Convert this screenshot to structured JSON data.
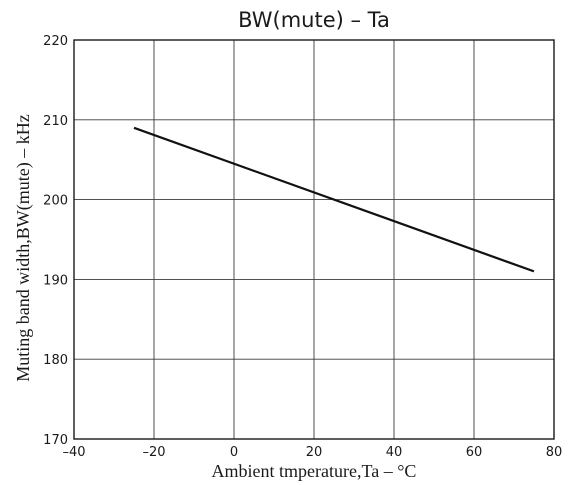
{
  "chart_data": {
    "type": "line",
    "title": "BW(mute)  –  Ta",
    "xlabel": "Ambient tmperature,Ta  –  °C",
    "ylabel": "Muting band width,BW(mute)  –  kHz",
    "xlim": [
      -40,
      80
    ],
    "ylim": [
      170,
      220
    ],
    "xticks": [
      -40,
      -20,
      0,
      20,
      40,
      60,
      80
    ],
    "yticks": [
      170,
      180,
      190,
      200,
      210,
      220
    ],
    "xtick_labels": [
      "–40",
      "–20",
      "0",
      "20",
      "40",
      "60",
      "80"
    ],
    "ytick_labels": [
      "170",
      "180",
      "190",
      "200",
      "210",
      "220"
    ],
    "grid": true,
    "series": [
      {
        "x": [
          -25,
          75
        ],
        "values": [
          209,
          191
        ]
      }
    ]
  }
}
